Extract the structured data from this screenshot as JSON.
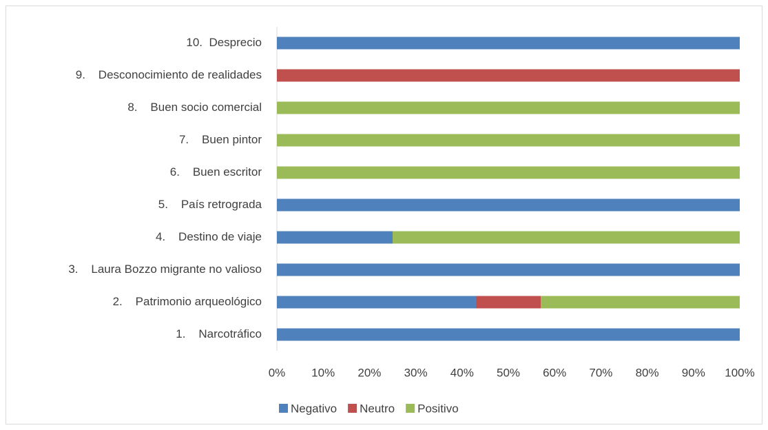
{
  "chart_data": {
    "type": "bar",
    "orientation": "horizontal",
    "stacked": true,
    "categories": [
      "10.  Desprecio",
      "9.    Desconocimiento de realidades",
      "8.    Buen socio comercial",
      "7.    Buen pintor",
      "6.    Buen escritor",
      "5.    País retrograda",
      "4.    Destino de viaje",
      "3.    Laura Bozzo migrante no valioso",
      "2.    Patrimonio arqueológico",
      "1.    Narcotráfico"
    ],
    "series": [
      {
        "name": "Negativo",
        "color": "#4f81bd",
        "values": [
          100,
          0,
          0,
          0,
          0,
          100,
          25,
          100,
          43,
          100
        ]
      },
      {
        "name": "Neutro",
        "color": "#c0504d",
        "values": [
          0,
          100,
          0,
          0,
          0,
          0,
          0,
          0,
          14,
          0
        ]
      },
      {
        "name": "Positivo",
        "color": "#9bbb59",
        "values": [
          0,
          0,
          100,
          100,
          100,
          0,
          75,
          0,
          43,
          0
        ]
      }
    ],
    "xlim": [
      0,
      100
    ],
    "xticks": [
      {
        "value": 0,
        "label": "0%"
      },
      {
        "value": 10,
        "label": "10%"
      },
      {
        "value": 20,
        "label": "20%"
      },
      {
        "value": 30,
        "label": "30%"
      },
      {
        "value": 40,
        "label": "40%"
      },
      {
        "value": 50,
        "label": "50%"
      },
      {
        "value": 60,
        "label": "60%"
      },
      {
        "value": 70,
        "label": "70%"
      },
      {
        "value": 80,
        "label": "80%"
      },
      {
        "value": 90,
        "label": "90%"
      },
      {
        "value": 100,
        "label": "100%"
      }
    ],
    "grid": false,
    "legend": "bottom"
  }
}
